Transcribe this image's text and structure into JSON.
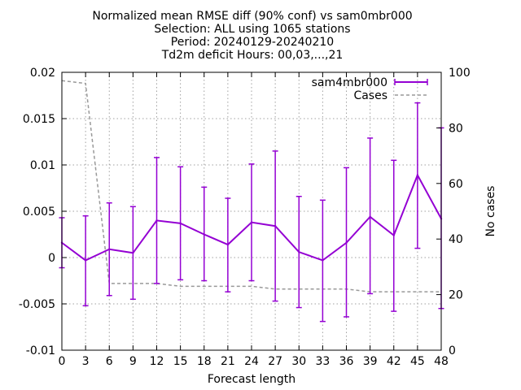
{
  "chart_data": {
    "type": "line",
    "title_lines": [
      "Normalized mean RMSE diff (90% conf) vs sam0mbr000",
      "Selection: ALL using  1065 stations",
      "Period: 20240129-20240210",
      "Td2m deficit   Hours: 00,03,...,21"
    ],
    "xlabel": "Forecast length",
    "ylabel_right": "No cases",
    "x": [
      0,
      3,
      6,
      9,
      12,
      15,
      18,
      21,
      24,
      27,
      30,
      33,
      36,
      39,
      42,
      45,
      48
    ],
    "x_tick_labels": [
      "0",
      "3",
      "6",
      "9",
      "12",
      "15",
      "18",
      "21",
      "24",
      "27",
      "30",
      "33",
      "36",
      "39",
      "42",
      "45",
      "48"
    ],
    "y_left_ticks": [
      -0.01,
      -0.005,
      0,
      0.005,
      0.01,
      0.015,
      0.02
    ],
    "y_left_tick_labels": [
      "-0.01",
      "-0.005",
      "0",
      "0.005",
      "0.01",
      "0.015",
      "0.02"
    ],
    "y_right_ticks": [
      0,
      20,
      40,
      60,
      80,
      100
    ],
    "y_right_tick_labels": [
      "0",
      "20",
      "40",
      "60",
      "80",
      "100"
    ],
    "xlim": [
      0,
      48
    ],
    "ylim_left": [
      -0.01,
      0.02
    ],
    "ylim_right": [
      0,
      100
    ],
    "grid": true,
    "legend_position": "top-right",
    "series": [
      {
        "name": "sam4mbr000",
        "axis": "left",
        "style": "line-errorbars",
        "color": "#9400d3",
        "values": [
          0.0016,
          -0.0003,
          0.0009,
          0.0005,
          0.004,
          0.0037,
          0.0025,
          0.0014,
          0.0038,
          0.0034,
          0.0006,
          -0.0003,
          0.0016,
          0.0044,
          0.0024,
          0.0089,
          0.0042
        ],
        "err_low": [
          -0.0011,
          -0.0052,
          -0.0041,
          -0.0045,
          -0.0028,
          -0.0024,
          -0.0025,
          -0.0037,
          -0.0025,
          -0.0047,
          -0.0054,
          -0.0069,
          -0.0064,
          -0.0039,
          -0.0058,
          0.001,
          -0.0055
        ],
        "err_high": [
          0.0043,
          0.0045,
          0.0059,
          0.0055,
          0.0108,
          0.0098,
          0.0076,
          0.0064,
          0.0101,
          0.0115,
          0.0066,
          0.0062,
          0.0097,
          0.0129,
          0.0105,
          0.0167,
          0.014
        ]
      },
      {
        "name": "Cases",
        "axis": "right",
        "style": "dashed",
        "color": "#999999",
        "values": [
          97,
          96,
          24,
          24,
          24,
          23,
          23,
          23,
          23,
          22,
          22,
          22,
          22,
          21,
          21,
          21,
          21
        ]
      }
    ]
  }
}
